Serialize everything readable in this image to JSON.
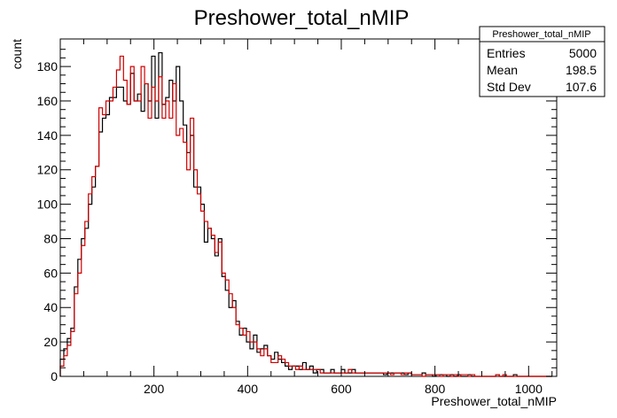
{
  "chart_data": {
    "type": "histogram",
    "title": "Preshower_total_nMIP",
    "xlabel": "Preshower_total_nMIP",
    "ylabel": "count",
    "xlim": [
      0,
      1060
    ],
    "ylim": [
      0,
      196
    ],
    "bin_width": 7.5,
    "x_ticks": [
      200,
      400,
      600,
      800,
      1000
    ],
    "y_ticks": [
      0,
      20,
      40,
      60,
      80,
      100,
      120,
      140,
      160,
      180
    ],
    "grid": false,
    "legend": "none",
    "series": [
      {
        "color": "#000000",
        "values": [
          10,
          16,
          22,
          28,
          52,
          68,
          80,
          86,
          100,
          110,
          122,
          142,
          150,
          152,
          162,
          162,
          168,
          168,
          160,
          158,
          176,
          160,
          164,
          154,
          170,
          160,
          186,
          150,
          188,
          158,
          162,
          172,
          160,
          180,
          160,
          146,
          130,
          140,
          110,
          110,
          100,
          78,
          86,
          80,
          70,
          80,
          58,
          50,
          40,
          44,
          32,
          24,
          28,
          20,
          16,
          24,
          14,
          16,
          18,
          12,
          10,
          14,
          10,
          8,
          6,
          4,
          6,
          6,
          4,
          8,
          4,
          6,
          2,
          4,
          4,
          2,
          2,
          4,
          2,
          2,
          4,
          2,
          2,
          4,
          2,
          2,
          2,
          2,
          2,
          2,
          2,
          2,
          1,
          2,
          2,
          2,
          2,
          2,
          1,
          2,
          1,
          1,
          1,
          2,
          1,
          1,
          0,
          1,
          1,
          1,
          0,
          1,
          0,
          1,
          0,
          0,
          1,
          0,
          0,
          0,
          0,
          0,
          0,
          0,
          1,
          0,
          0,
          0,
          0,
          1,
          0,
          0,
          0,
          0,
          0,
          0,
          0,
          0,
          0,
          0
        ]
      },
      {
        "color": "#d00000",
        "values": [
          6,
          12,
          18,
          26,
          48,
          60,
          76,
          90,
          106,
          116,
          122,
          156,
          152,
          160,
          160,
          168,
          178,
          186,
          172,
          158,
          180,
          160,
          160,
          180,
          170,
          150,
          168,
          160,
          174,
          150,
          160,
          150,
          170,
          140,
          144,
          136,
          120,
          150,
          120,
          106,
          96,
          90,
          86,
          82,
          72,
          78,
          60,
          56,
          48,
          40,
          30,
          28,
          24,
          26,
          20,
          20,
          16,
          12,
          16,
          12,
          8,
          8,
          12,
          10,
          8,
          6,
          6,
          4,
          6,
          4,
          4,
          4,
          4,
          4,
          2,
          2,
          2,
          2,
          2,
          2,
          2,
          2,
          4,
          2,
          2,
          2,
          2,
          2,
          2,
          2,
          2,
          2,
          2,
          2,
          1,
          2,
          2,
          1,
          2,
          2,
          1,
          1,
          1,
          0,
          1,
          1,
          1,
          1,
          0,
          1,
          1,
          0,
          1,
          0,
          1,
          1,
          0,
          1,
          0,
          0,
          0,
          0,
          0,
          0,
          1,
          0,
          1,
          0,
          0,
          0,
          0,
          0,
          0,
          0,
          0,
          0,
          0,
          0,
          0,
          0
        ]
      }
    ]
  },
  "stats_box": {
    "title": "Preshower_total_nMIP",
    "rows": [
      {
        "label": "Entries",
        "value": "5000"
      },
      {
        "label": "Mean",
        "value": "198.5"
      },
      {
        "label": "Std Dev",
        "value": "107.6"
      }
    ]
  }
}
